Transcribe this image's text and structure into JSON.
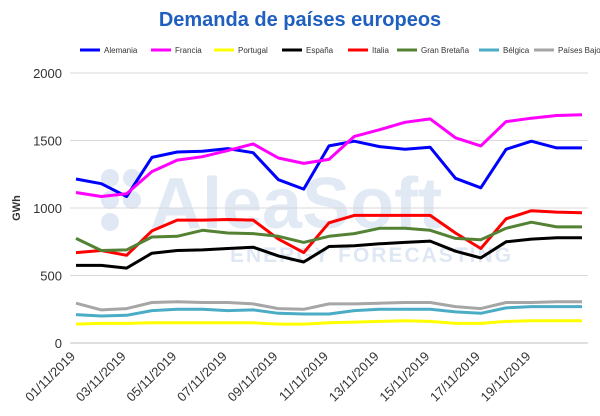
{
  "watermark": {
    "brand": "AleaSoft",
    "tagline": "ENERGY FORECASTING"
  },
  "chart_data": {
    "type": "line",
    "title": "Demanda de países europeos",
    "ylabel": "GWh",
    "xlabel": "",
    "ylim": [
      0,
      2000
    ],
    "yticks": [
      0,
      500,
      1000,
      1500,
      2000
    ],
    "grid": "horizontal",
    "legend_position": "top",
    "x": [
      "01/11/2019",
      "02/11/2019",
      "03/11/2019",
      "04/11/2019",
      "05/11/2019",
      "06/11/2019",
      "07/11/2019",
      "08/11/2019",
      "09/11/2019",
      "10/11/2019",
      "11/11/2019",
      "12/11/2019",
      "13/11/2019",
      "14/11/2019",
      "15/11/2019",
      "16/11/2019",
      "17/11/2019",
      "18/11/2019",
      "19/11/2019",
      "20/11/2019",
      "21/11/2019"
    ],
    "xtick_labels": [
      "01/11/2019",
      "03/11/2019",
      "05/11/2019",
      "07/11/2019",
      "09/11/2019",
      "11/11/2019",
      "13/11/2019",
      "15/11/2019",
      "17/11/2019",
      "19/11/2019"
    ],
    "series": [
      {
        "name": "Alemania",
        "color": "#0000ff",
        "values": [
          1215,
          1180,
          1085,
          1375,
          1415,
          1420,
          1440,
          1410,
          1210,
          1140,
          1460,
          1495,
          1455,
          1435,
          1450,
          1220,
          1150,
          1435,
          1495,
          1445,
          1445
        ]
      },
      {
        "name": "Francia",
        "color": "#ff00ff",
        "values": [
          1115,
          1085,
          1105,
          1270,
          1355,
          1380,
          1425,
          1475,
          1370,
          1330,
          1360,
          1530,
          1580,
          1635,
          1660,
          1520,
          1460,
          1640,
          1665,
          1685,
          1690
        ]
      },
      {
        "name": "Portugal",
        "color": "#ffff00",
        "values": [
          140,
          145,
          145,
          150,
          150,
          150,
          150,
          150,
          140,
          140,
          150,
          155,
          160,
          165,
          160,
          145,
          145,
          160,
          165,
          165,
          165
        ]
      },
      {
        "name": "España",
        "color": "#000000",
        "values": [
          575,
          575,
          555,
          665,
          685,
          690,
          700,
          710,
          645,
          600,
          715,
          720,
          735,
          745,
          755,
          680,
          630,
          750,
          770,
          780,
          780
        ]
      },
      {
        "name": "Italia",
        "color": "#ff0000",
        "values": [
          670,
          685,
          650,
          830,
          910,
          910,
          915,
          910,
          770,
          670,
          890,
          945,
          945,
          945,
          945,
          815,
          700,
          920,
          980,
          970,
          965
        ]
      },
      {
        "name": "Gran Bretaña",
        "color": "#548235",
        "values": [
          775,
          685,
          690,
          785,
          790,
          835,
          815,
          810,
          790,
          745,
          790,
          810,
          850,
          850,
          835,
          775,
          765,
          850,
          895,
          860,
          860
        ]
      },
      {
        "name": "Bélgica",
        "color": "#4bacc6",
        "values": [
          210,
          200,
          205,
          240,
          250,
          250,
          240,
          245,
          220,
          215,
          215,
          240,
          250,
          250,
          250,
          230,
          220,
          260,
          270,
          270,
          270
        ]
      },
      {
        "name": "Países Bajos",
        "color": "#a6a6a6",
        "values": [
          295,
          245,
          255,
          300,
          305,
          300,
          300,
          290,
          255,
          250,
          290,
          290,
          295,
          300,
          300,
          270,
          255,
          300,
          300,
          305,
          305
        ]
      }
    ]
  }
}
